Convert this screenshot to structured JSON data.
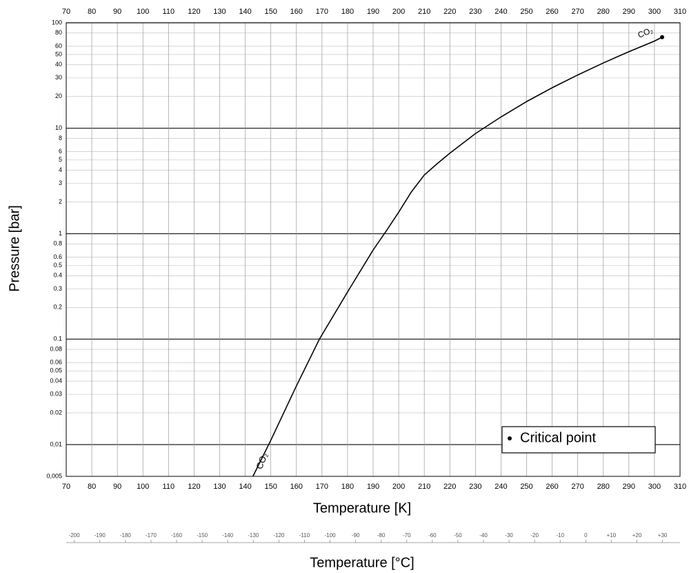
{
  "chart_data": {
    "type": "line",
    "xlabel": "Temperature [K]",
    "ylabel": "Pressure [bar]",
    "x2label": "Temperature [°C]",
    "x": [
      143,
      150,
      160,
      169,
      180,
      190,
      195,
      200,
      205,
      210,
      215,
      220,
      230,
      240,
      250,
      260,
      270,
      280,
      290,
      300,
      303
    ],
    "series": [
      {
        "name": "CO₂",
        "color": "#000000",
        "values": [
          0.005,
          0.011,
          0.036,
          0.1,
          0.28,
          0.7,
          1.05,
          1.6,
          2.5,
          3.6,
          4.6,
          5.8,
          8.9,
          12.8,
          17.9,
          24.2,
          32,
          41.6,
          53.2,
          67.1,
          73
        ]
      }
    ],
    "critical_point": {
      "name": "Critical point",
      "x": 303,
      "y": 73,
      "color": "#000000"
    },
    "xlim": [
      70,
      310
    ],
    "xticks": [
      70,
      80,
      90,
      100,
      110,
      120,
      130,
      140,
      150,
      160,
      170,
      180,
      190,
      200,
      210,
      220,
      230,
      240,
      250,
      260,
      270,
      280,
      290,
      300,
      310
    ],
    "ylim": [
      0.005,
      100
    ],
    "yscale": "log",
    "yticks": [
      100,
      80,
      60,
      50,
      40,
      30,
      20,
      10,
      8,
      6,
      5,
      4,
      3,
      2,
      1,
      0.8,
      0.6,
      0.5,
      0.4,
      0.3,
      0.2,
      0.1,
      0.08,
      0.06,
      0.05,
      0.04,
      0.03,
      0.02,
      {
        "value": 0.01,
        "label": "0,01"
      },
      {
        "value": 0.005,
        "label": "0,005"
      }
    ],
    "x2lim": [
      -203.15,
      36.85
    ],
    "x2ticks": [
      -200,
      -190,
      -180,
      -170,
      -160,
      -150,
      -140,
      -130,
      -120,
      -110,
      -100,
      -90,
      -80,
      -70,
      -60,
      -50,
      -40,
      -30,
      -20,
      -10,
      0,
      {
        "value": 10,
        "label": "+10"
      },
      {
        "value": 20,
        "label": "+20"
      },
      {
        "value": 30,
        "label": "+30"
      }
    ],
    "grid": true
  }
}
